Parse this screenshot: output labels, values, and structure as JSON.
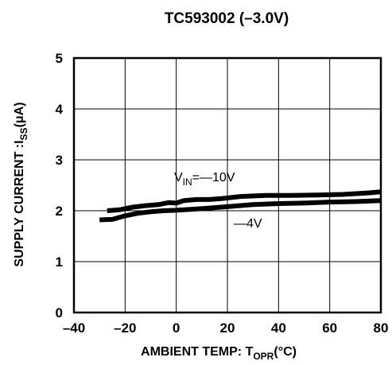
{
  "chart_data": {
    "type": "line",
    "title": "TC593002 (–3.0V)",
    "xlabel": {
      "main": "AMBIENT TEMP: T",
      "sub": "OPR",
      "tail": "(°C)"
    },
    "ylabel": {
      "main": "SUPPLY CURRENT :I",
      "sub": "SS",
      "tail": "(μA)"
    },
    "xlim": [
      -40,
      80
    ],
    "ylim": [
      0,
      5
    ],
    "x_ticks": [
      -40,
      -20,
      0,
      20,
      40,
      60,
      80
    ],
    "x_tick_labels": [
      "–40",
      "–20",
      "0",
      "20",
      "40",
      "60",
      "80"
    ],
    "y_ticks": [
      0,
      1,
      2,
      3,
      4,
      5
    ],
    "y_tick_labels": [
      "0",
      "1",
      "2",
      "3",
      "4",
      "5"
    ],
    "grid": true,
    "series": [
      {
        "name": "V_IN=—10V",
        "x": [
          -27,
          -22,
          -17,
          -12,
          -7,
          -3,
          0,
          3,
          8,
          13,
          18,
          25,
          35,
          45,
          55,
          65,
          75,
          80
        ],
        "y": [
          2.0,
          2.02,
          2.07,
          2.1,
          2.12,
          2.16,
          2.15,
          2.2,
          2.22,
          2.22,
          2.24,
          2.28,
          2.3,
          2.3,
          2.31,
          2.32,
          2.35,
          2.37
        ]
      },
      {
        "name": "—4V",
        "x": [
          -30,
          -25,
          -20,
          -15,
          -10,
          -5,
          0,
          10,
          20,
          30,
          40,
          50,
          60,
          70,
          80
        ],
        "y": [
          1.82,
          1.83,
          1.9,
          1.95,
          1.98,
          2.0,
          2.01,
          2.04,
          2.08,
          2.12,
          2.14,
          2.15,
          2.17,
          2.18,
          2.2
        ]
      }
    ],
    "annotations": {
      "vin_label": {
        "main": "V",
        "sub": "IN",
        "tail": "=—10V"
      },
      "v4_label": "—4V"
    },
    "line_color": "#000000"
  }
}
